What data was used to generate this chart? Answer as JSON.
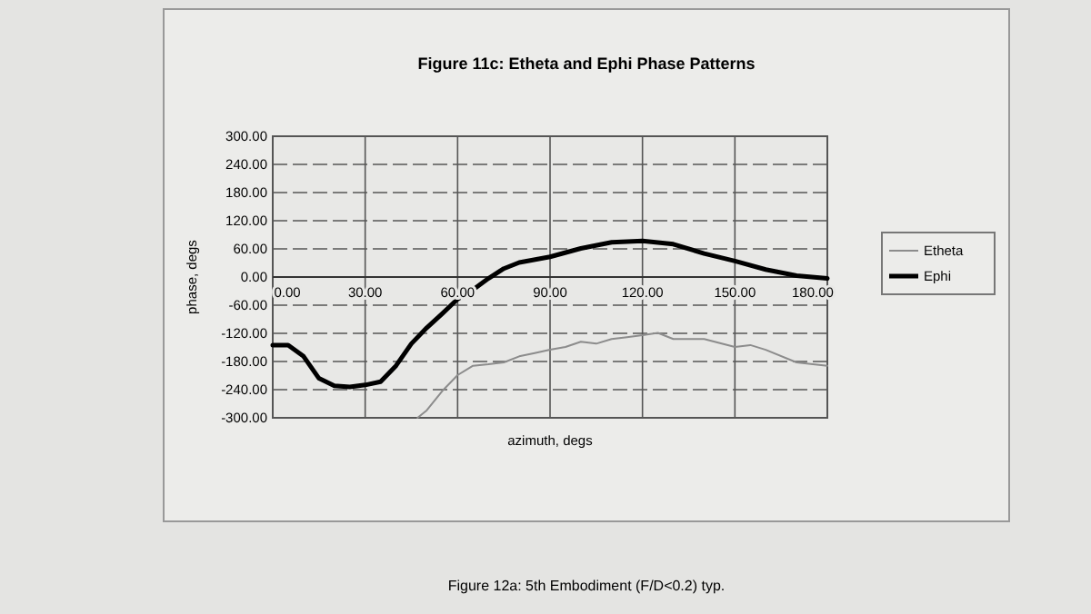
{
  "chart_data": {
    "type": "line",
    "title": "Figure 11c: Etheta and Ephi Phase Patterns",
    "xlabel": "azimuth, degs",
    "ylabel": "phase, degs",
    "annotations": [
      "Figure 12a: 5th Embodiment (F/D<0.2) typ."
    ],
    "series": [
      {
        "name": "Etheta",
        "color": "#8c8c8c",
        "x": [
          47,
          50,
          55,
          60,
          65,
          70,
          75,
          80,
          85,
          90,
          95,
          100,
          105,
          110,
          115,
          120,
          125,
          130,
          140,
          150,
          155,
          160,
          170,
          180
        ],
        "values": [
          -300,
          -284,
          -243,
          -209,
          -189,
          -186,
          -182,
          -169,
          -162,
          -155,
          -149,
          -138,
          -142,
          -132,
          -128,
          -124,
          -119,
          -132,
          -132,
          -149,
          -145,
          -155,
          -182,
          -189
        ]
      },
      {
        "name": "Ephi",
        "color": "#000000",
        "x": [
          0,
          5,
          10,
          15,
          20,
          25,
          30,
          35,
          40,
          45,
          50,
          55,
          60,
          65,
          70,
          75,
          80,
          90,
          100,
          110,
          120,
          130,
          140,
          150,
          160,
          170,
          180
        ],
        "values": [
          -145,
          -145,
          -169,
          -216,
          -232,
          -234,
          -230,
          -223,
          -189,
          -142,
          -108,
          -78,
          -47,
          -27,
          -3,
          18,
          31,
          43,
          61,
          74,
          77,
          70,
          50,
          34,
          16,
          3,
          -3
        ]
      }
    ],
    "xlim": [
      0,
      180
    ],
    "ylim": [
      -300,
      300
    ],
    "xticks": [
      {
        "value": 0,
        "label": "0.00"
      },
      {
        "value": 30,
        "label": "30.00"
      },
      {
        "value": 60,
        "label": "60.00"
      },
      {
        "value": 90,
        "label": "90.00"
      },
      {
        "value": 120,
        "label": "120.00"
      },
      {
        "value": 150,
        "label": "150.00"
      },
      {
        "value": 180,
        "label": "180.00"
      }
    ],
    "yticks": [
      {
        "value": -300,
        "label": "-300.00"
      },
      {
        "value": -240,
        "label": "-240.00"
      },
      {
        "value": -180,
        "label": "-180.00"
      },
      {
        "value": -120,
        "label": "-120.00"
      },
      {
        "value": -60,
        "label": "-60.00"
      },
      {
        "value": 0,
        "label": "0.00"
      },
      {
        "value": 60,
        "label": "60.00"
      },
      {
        "value": 120,
        "label": "120.00"
      },
      {
        "value": 180,
        "label": "180.00"
      },
      {
        "value": 240,
        "label": "240.00"
      },
      {
        "value": 300,
        "label": "300.00"
      }
    ],
    "grid": true,
    "legend": "right",
    "line_style": "solid",
    "marker": "none"
  }
}
